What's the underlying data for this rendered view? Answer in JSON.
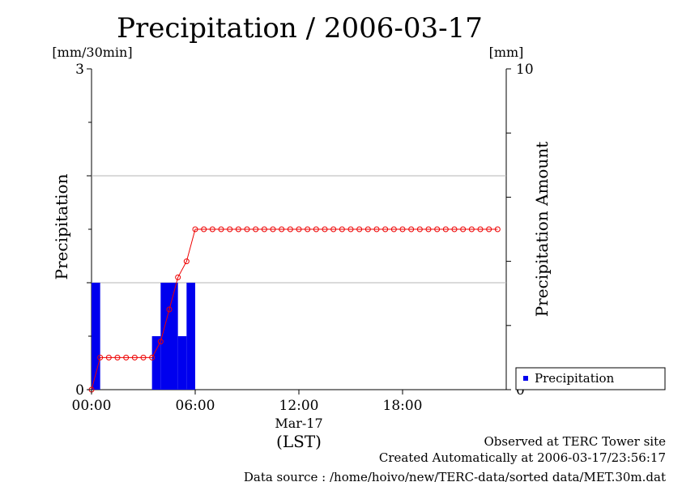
{
  "chart_data": {
    "type": "bar",
    "title": "Precipitation / 2006-03-17",
    "y_unit": "[mm/30min]",
    "y2_unit": "[mm]",
    "ylabel": "Precipitation",
    "y2label": "Precipitation Amount",
    "ylim": [
      0,
      3
    ],
    "y2lim": [
      0,
      10
    ],
    "y_ticks": [
      "0",
      "3"
    ],
    "y2_ticks": [
      "0",
      "10"
    ],
    "x_ticks": [
      "00:00",
      "06:00",
      "12:00",
      "18:00"
    ],
    "x_tick_hours": [
      0,
      6,
      12,
      18
    ],
    "xlim_hours": [
      0,
      24
    ],
    "date_label": "Mar-17",
    "xlabel": "(LST)",
    "grid": true,
    "legend": {
      "label": "Precipitation",
      "color": "#0000ee",
      "position": "bottom-right"
    },
    "bar_color": "#0000ee",
    "line_color": "#ee0000",
    "series": [
      {
        "name": "Precipitation",
        "kind": "bar",
        "axis": "left",
        "x_hours": [
          0.0,
          3.5,
          4.0,
          4.5,
          5.0,
          5.5
        ],
        "values": [
          1.0,
          0.5,
          1.0,
          1.0,
          0.5,
          1.0
        ]
      },
      {
        "kind": "line",
        "axis": "right",
        "x_hours": [
          0.0,
          0.5,
          1.0,
          1.5,
          2.0,
          2.5,
          3.0,
          3.5,
          4.0,
          4.5,
          5.0,
          5.5,
          6.0,
          6.5,
          7.0,
          7.5,
          8.0,
          8.5,
          9.0,
          9.5,
          10.0,
          10.5,
          11.0,
          11.5,
          12.0,
          12.5,
          13.0,
          13.5,
          14.0,
          14.5,
          15.0,
          15.5,
          16.0,
          16.5,
          17.0,
          17.5,
          18.0,
          18.5,
          19.0,
          19.5,
          20.0,
          20.5,
          21.0,
          21.5,
          22.0,
          22.5,
          23.0,
          23.5
        ],
        "values": [
          0.0,
          1.0,
          1.0,
          1.0,
          1.0,
          1.0,
          1.0,
          1.0,
          1.5,
          2.5,
          3.5,
          4.0,
          5.0,
          5.0,
          5.0,
          5.0,
          5.0,
          5.0,
          5.0,
          5.0,
          5.0,
          5.0,
          5.0,
          5.0,
          5.0,
          5.0,
          5.0,
          5.0,
          5.0,
          5.0,
          5.0,
          5.0,
          5.0,
          5.0,
          5.0,
          5.0,
          5.0,
          5.0,
          5.0,
          5.0,
          5.0,
          5.0,
          5.0,
          5.0,
          5.0,
          5.0,
          5.0,
          5.0
        ]
      }
    ]
  },
  "footer": {
    "line1": "Observed at TERC Tower site",
    "line2": "Created Automatically at 2006-03-17/23:56:17",
    "line3": "Data source : /home/hoivo/new/TERC-data/sorted  data/MET.30m.dat"
  }
}
